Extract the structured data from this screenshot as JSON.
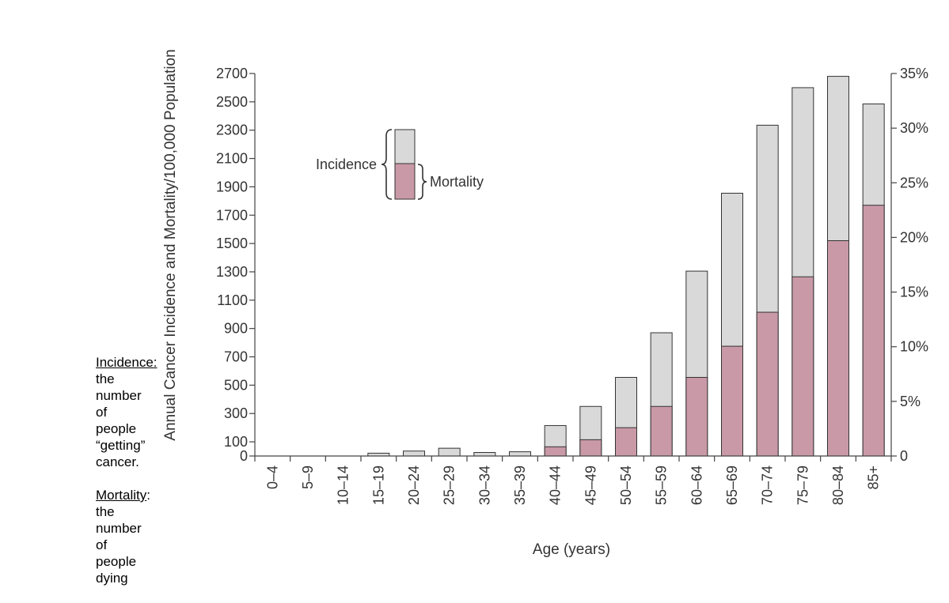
{
  "notes": [
    {
      "term": "Incidence:",
      "text": " the number of people “getting” cancer."
    },
    {
      "term": "Mortality",
      "text": ": the number of people dying"
    }
  ],
  "chart_data": {
    "type": "bar",
    "stacked": "overlay",
    "title": "",
    "xlabel": "Age (years)",
    "ylabel": "Annual Cancer Incidence and Mortality/100,000 Population",
    "categories": [
      "0–4",
      "5–9",
      "10–14",
      "15–19",
      "20–24",
      "25–29",
      "30–34",
      "35–39",
      "40–44",
      "45–49",
      "50–54",
      "55–59",
      "60–64",
      "65–69",
      "70–74",
      "75–79",
      "80–84",
      "85+"
    ],
    "series": [
      {
        "name": "Incidence",
        "color": "#d9d9d9",
        "values": [
          0,
          0,
          0,
          20,
          35,
          55,
          25,
          30,
          215,
          350,
          555,
          870,
          1305,
          1855,
          2335,
          2600,
          2680,
          2485
        ]
      },
      {
        "name": "Mortality",
        "color": "#c999a7",
        "values": [
          0,
          0,
          0,
          0,
          0,
          0,
          0,
          0,
          65,
          115,
          200,
          350,
          555,
          775,
          1015,
          1265,
          1520,
          1770
        ]
      }
    ],
    "ylim": [
      0,
      2700
    ],
    "yticks": [
      0,
      100,
      300,
      500,
      700,
      900,
      1100,
      1300,
      1500,
      1700,
      1900,
      2100,
      2300,
      2500,
      2700
    ],
    "y2ticks": [
      "0",
      "5%",
      "10%",
      "15%",
      "20%",
      "25%",
      "30%",
      "35%"
    ],
    "y2max_percent": 35,
    "legend": {
      "incidence_label": "Incidence",
      "mortality_label": "Mortality"
    },
    "grid": false
  }
}
